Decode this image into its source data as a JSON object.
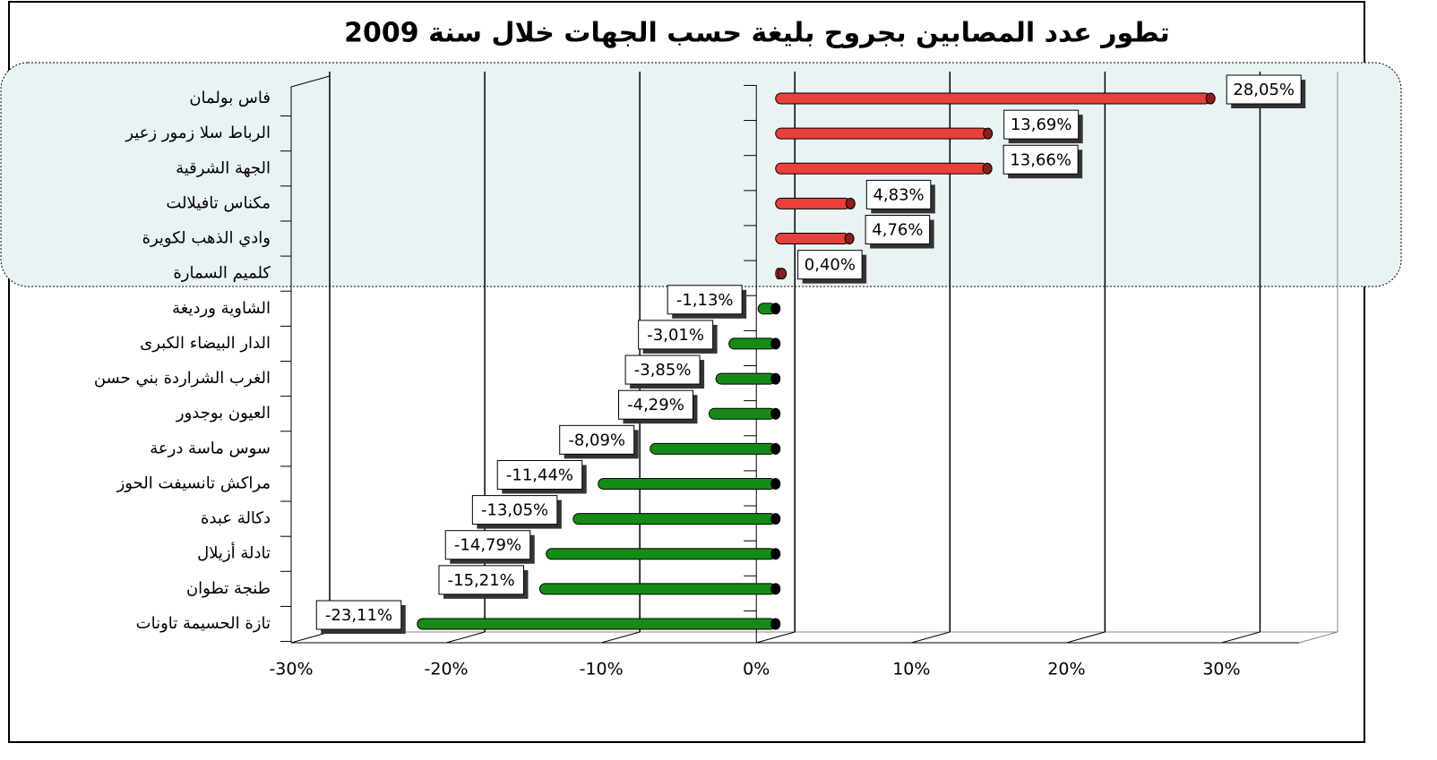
{
  "chart_data": {
    "type": "bar",
    "orientation": "horizontal",
    "title": "تطور عدد المصابين بجروح بليغة حسب الجهات خلال سنة 2009",
    "categories": [
      "فاس بولمان",
      "الرباط سلا زمور زعير",
      "الجهة الشرقية",
      "مكناس تافيلالت",
      "وادي الذهب لكويرة",
      "كلميم السمارة",
      "الشاوية ورديغة",
      "الدار البيضاء الكبرى",
      "الغرب الشراردة بني حسن",
      "العيون بوجدور",
      "سوس ماسة درعة",
      "مراكش تانسيفت الحوز",
      "دكالة عبدة",
      "تادلة أزيلال",
      "طنجة تطوان",
      "تازة الحسيمة تاونات"
    ],
    "values": [
      28.05,
      13.69,
      13.66,
      4.83,
      4.76,
      0.4,
      -1.13,
      -3.01,
      -3.85,
      -4.29,
      -8.09,
      -11.44,
      -13.05,
      -14.79,
      -15.21,
      -23.11
    ],
    "value_labels": [
      "28,05%",
      "13,69%",
      "13,66%",
      "4,83%",
      "4,76%",
      "0,40%",
      "-1,13%",
      "-3,01%",
      "-3,85%",
      "-4,29%",
      "-8,09%",
      "-11,44%",
      "-13,05%",
      "-14,79%",
      "-15,21%",
      "-23,11%"
    ],
    "color_positive": "#e8403c",
    "color_negative": "#168a16",
    "xlim": [
      -30,
      35
    ],
    "xticks": [
      {
        "value": -30,
        "label": "-30%"
      },
      {
        "value": -20,
        "label": "-20%"
      },
      {
        "value": -10,
        "label": "-10%"
      },
      {
        "value": 0,
        "label": "0%"
      },
      {
        "value": 10,
        "label": "10%"
      },
      {
        "value": 20,
        "label": "20%"
      },
      {
        "value": 30,
        "label": "30%"
      }
    ],
    "grid": true
  }
}
